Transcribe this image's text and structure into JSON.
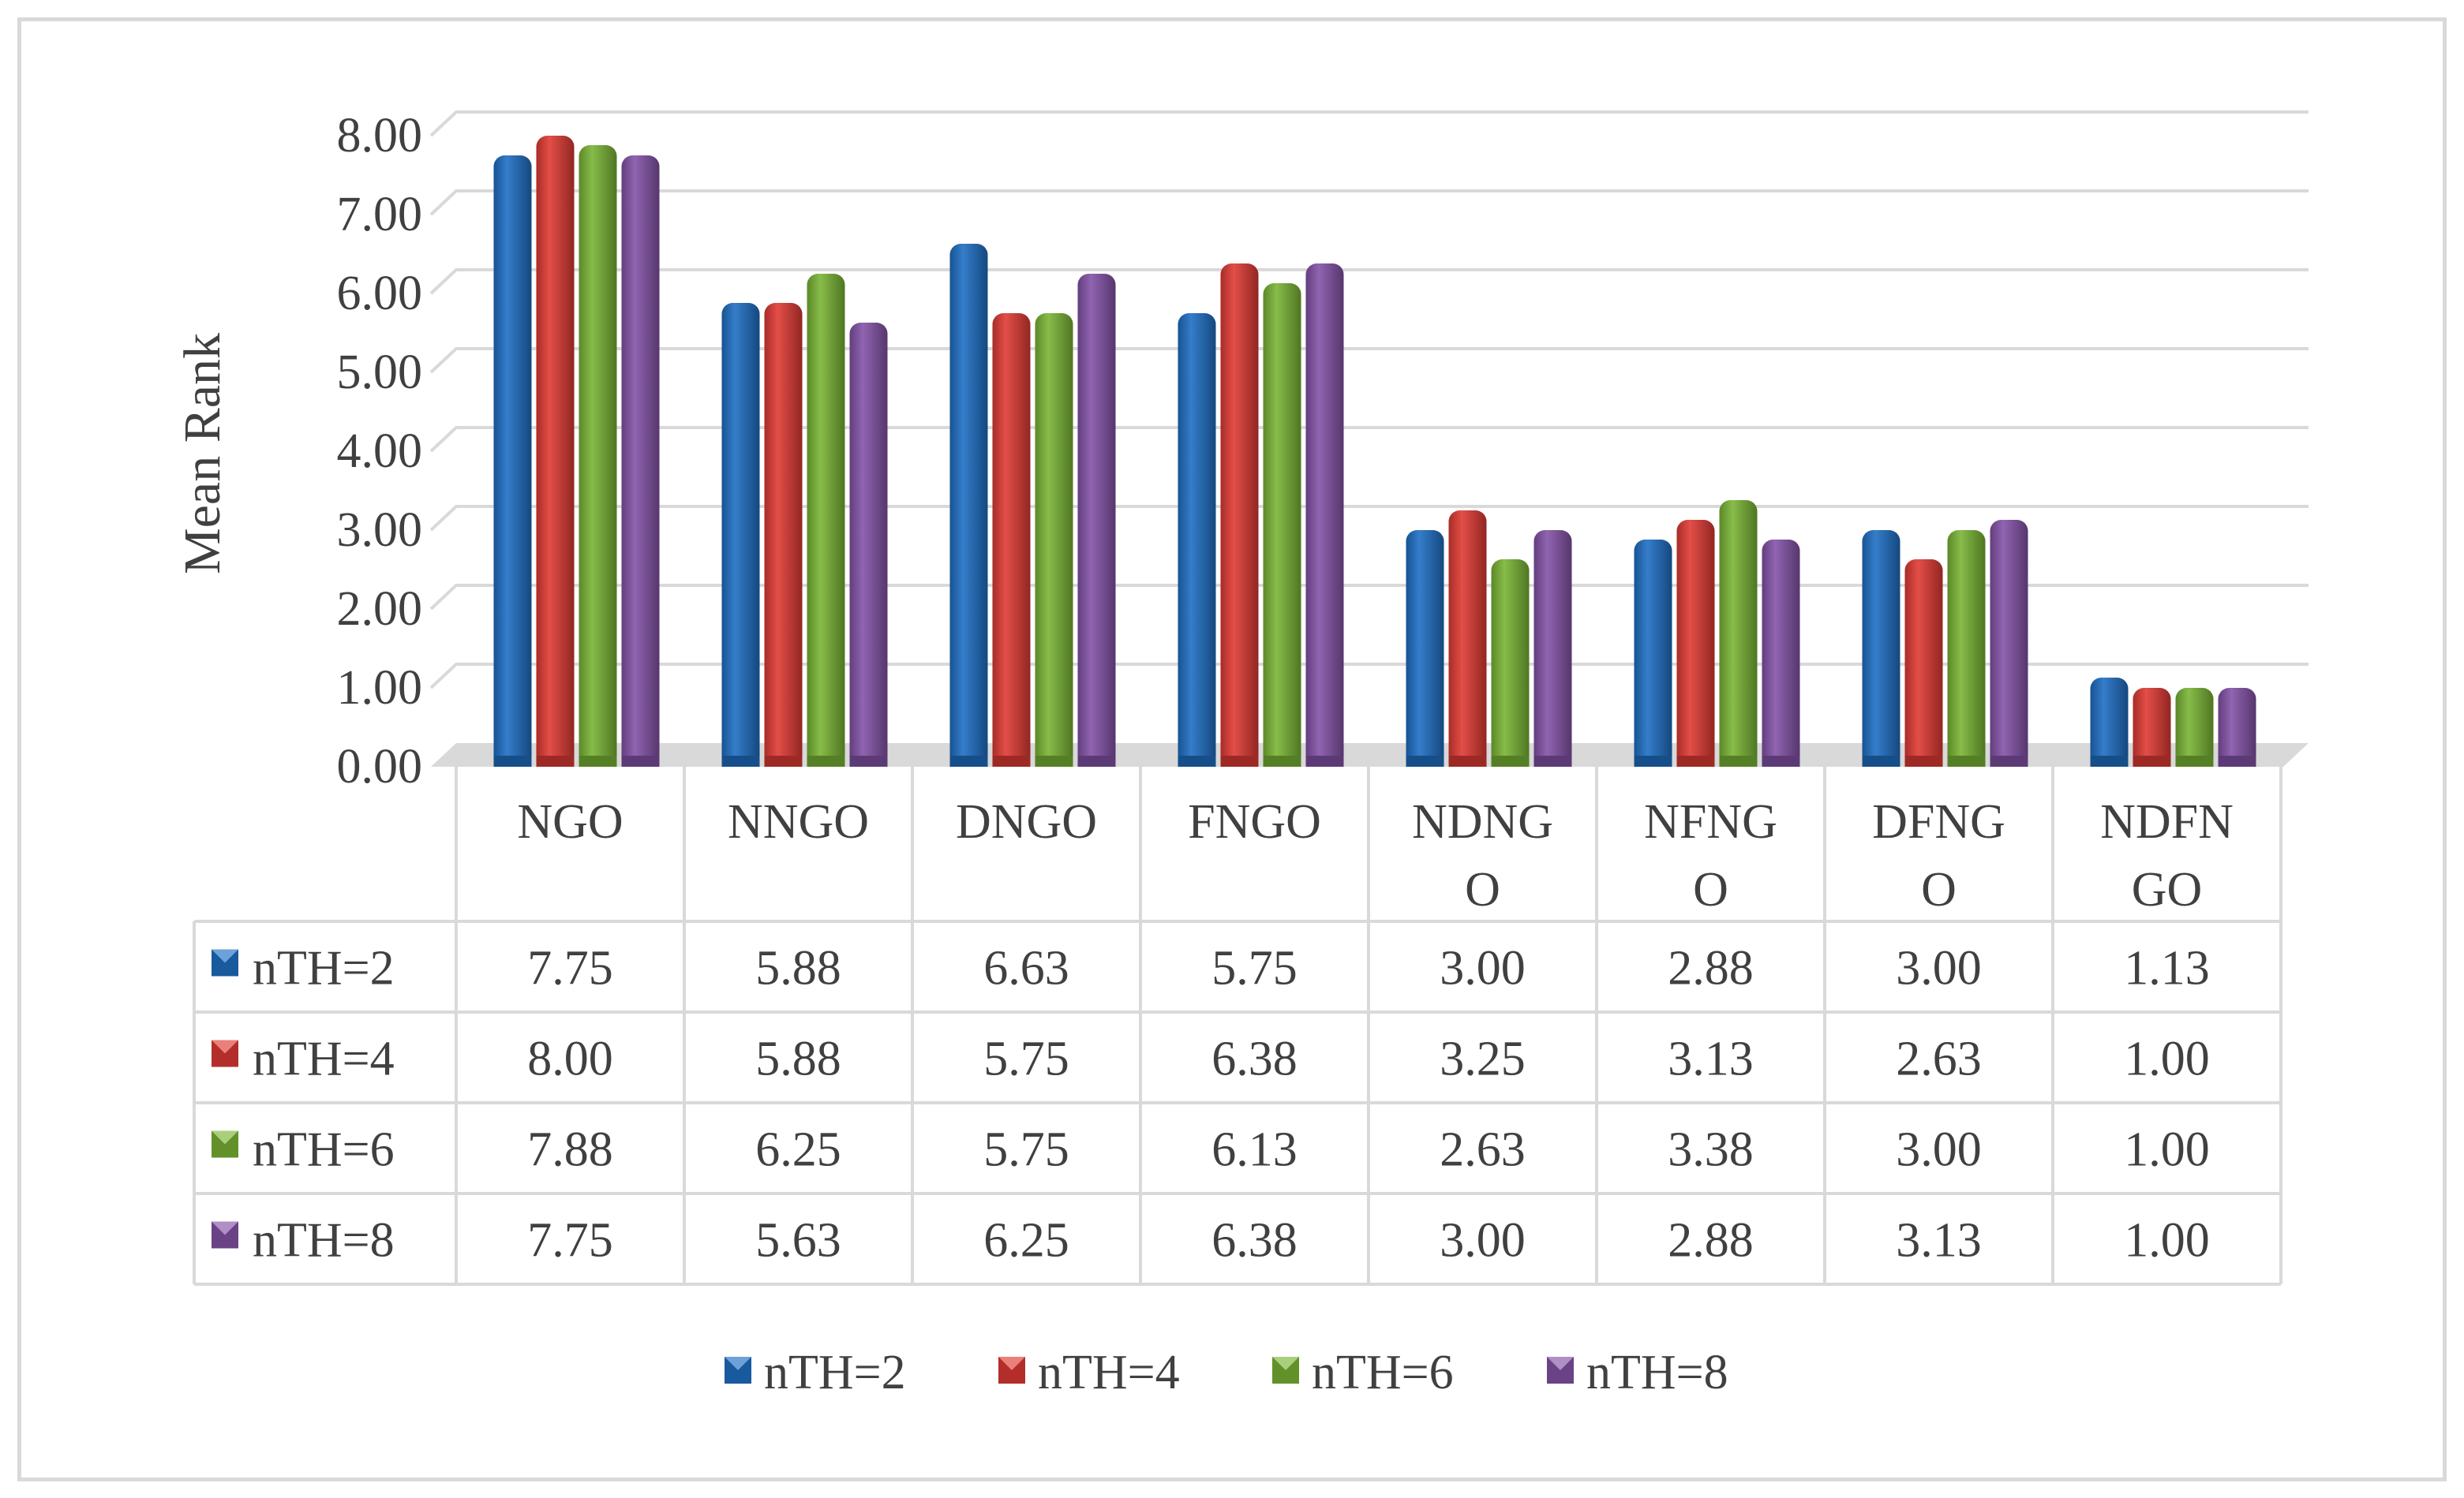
{
  "chart_data": {
    "type": "bar",
    "ylabel": "Mean Rank",
    "xlabel": "",
    "ylim": [
      0,
      8
    ],
    "ytick_labels": [
      "0.00",
      "1.00",
      "2.00",
      "3.00",
      "4.00",
      "5.00",
      "6.00",
      "7.00",
      "8.00"
    ],
    "grid": true,
    "legend_position": "bottom",
    "categories": [
      "NGO",
      "NNGO",
      "DNGO",
      "FNGO",
      "NDNGO",
      "NFNGO",
      "DFNGO",
      "NDFNGO"
    ],
    "category_display": [
      [
        "NGO"
      ],
      [
        "NNGO"
      ],
      [
        "DNGO"
      ],
      [
        "FNGO"
      ],
      [
        "NDNG",
        "O"
      ],
      [
        "NFNG",
        "O"
      ],
      [
        "DFNG",
        "O"
      ],
      [
        "NDFN",
        "GO"
      ]
    ],
    "series": [
      {
        "name": "nTH=2",
        "color": "#1f6fc4",
        "values": [
          7.75,
          5.88,
          6.63,
          5.75,
          3.0,
          2.88,
          3.0,
          1.13
        ],
        "labels": [
          "7.75",
          "5.88",
          "6.63",
          "5.75",
          "3.00",
          "2.88",
          "3.00",
          "1.13"
        ]
      },
      {
        "name": "nTH=4",
        "color": "#e03a34",
        "values": [
          8.0,
          5.88,
          5.75,
          6.38,
          3.25,
          3.13,
          2.63,
          1.0
        ],
        "labels": [
          "8.00",
          "5.88",
          "5.75",
          "6.38",
          "3.25",
          "3.13",
          "2.63",
          "1.00"
        ]
      },
      {
        "name": "nTH=6",
        "color": "#7ab535",
        "values": [
          7.88,
          6.25,
          5.75,
          6.13,
          2.63,
          3.38,
          3.0,
          1.0
        ],
        "labels": [
          "7.88",
          "6.25",
          "5.75",
          "6.13",
          "2.63",
          "3.38",
          "3.00",
          "1.00"
        ]
      },
      {
        "name": "nTH=8",
        "color": "#8453a8",
        "values": [
          7.75,
          5.63,
          6.25,
          6.38,
          3.0,
          2.88,
          3.13,
          1.0
        ],
        "labels": [
          "7.75",
          "5.63",
          "6.25",
          "6.38",
          "3.00",
          "2.88",
          "3.13",
          "1.00"
        ]
      }
    ]
  }
}
